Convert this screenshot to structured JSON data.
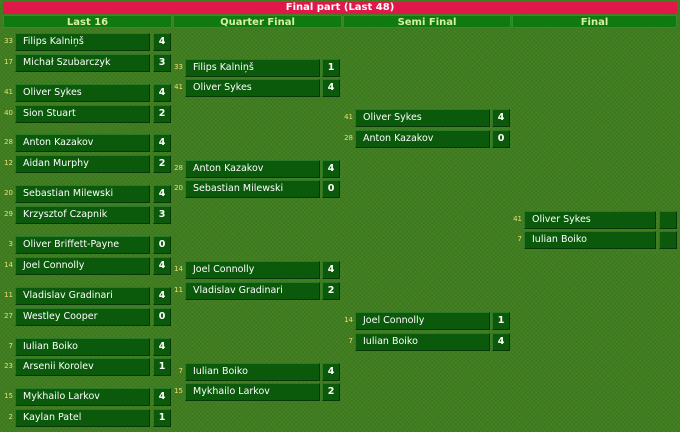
{
  "title": "Final part (Last 48)",
  "rounds": [
    "Last 16",
    "Quarter Final",
    "Semi Final",
    "Final"
  ],
  "last16": [
    {
      "seed": "33",
      "name": "Filips Kalniņš",
      "score": "4"
    },
    {
      "seed": "17",
      "name": "Michał Szubarczyk",
      "score": "3"
    },
    {
      "seed": "41",
      "name": "Oliver Sykes",
      "score": "4"
    },
    {
      "seed": "40",
      "name": "Sion Stuart",
      "score": "2"
    },
    {
      "seed": "28",
      "name": "Anton Kazakov",
      "score": "4"
    },
    {
      "seed": "12",
      "name": "Aidan Murphy",
      "score": "2"
    },
    {
      "seed": "20",
      "name": "Sebastian Milewski",
      "score": "4"
    },
    {
      "seed": "29",
      "name": "Krzysztof Czapnik",
      "score": "3"
    },
    {
      "seed": "3",
      "name": "Oliver Briffett-Payne",
      "score": "0"
    },
    {
      "seed": "14",
      "name": "Joel Connolly",
      "score": "4"
    },
    {
      "seed": "11",
      "name": "Vladislav Gradinari",
      "score": "4"
    },
    {
      "seed": "27",
      "name": "Westley Cooper",
      "score": "0"
    },
    {
      "seed": "7",
      "name": "Iulian Boiko",
      "score": "4"
    },
    {
      "seed": "23",
      "name": "Arsenii Korolev",
      "score": "1"
    },
    {
      "seed": "15",
      "name": "Mykhailo Larkov",
      "score": "4"
    },
    {
      "seed": "2",
      "name": "Kaylan Patel",
      "score": "1"
    }
  ],
  "quarter": [
    {
      "seed": "33",
      "name": "Filips Kalniņš",
      "score": "1"
    },
    {
      "seed": "41",
      "name": "Oliver Sykes",
      "score": "4"
    },
    {
      "seed": "28",
      "name": "Anton Kazakov",
      "score": "4"
    },
    {
      "seed": "20",
      "name": "Sebastian Milewski",
      "score": "0"
    },
    {
      "seed": "14",
      "name": "Joel Connolly",
      "score": "4"
    },
    {
      "seed": "11",
      "name": "Vladislav Gradinari",
      "score": "2"
    },
    {
      "seed": "7",
      "name": "Iulian Boiko",
      "score": "4"
    },
    {
      "seed": "15",
      "name": "Mykhailo Larkov",
      "score": "2"
    }
  ],
  "semi": [
    {
      "seed": "41",
      "name": "Oliver Sykes",
      "score": "4"
    },
    {
      "seed": "28",
      "name": "Anton Kazakov",
      "score": "0"
    },
    {
      "seed": "14",
      "name": "Joel Connolly",
      "score": "1"
    },
    {
      "seed": "7",
      "name": "Iulian Boiko",
      "score": "4"
    }
  ],
  "final": [
    {
      "seed": "41",
      "name": "Oliver Sykes",
      "score": ""
    },
    {
      "seed": "7",
      "name": "Iulian Boiko",
      "score": ""
    }
  ]
}
